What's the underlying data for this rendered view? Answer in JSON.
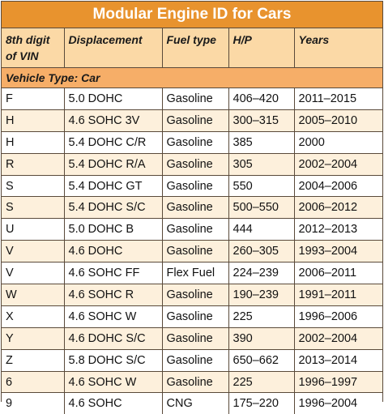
{
  "title": "Modular Engine ID for Cars",
  "headers": [
    "8th digit of VIN",
    "Displacement",
    "Fuel type",
    "H/P",
    "Years"
  ],
  "section": "Vehicle Type: Car",
  "rows": [
    [
      "F",
      "5.0 DOHC",
      "Gasoline",
      "406–420",
      "2011–2015"
    ],
    [
      "H",
      "4.6 SOHC 3V",
      "Gasoline",
      "300–315",
      "2005–2010"
    ],
    [
      "H",
      "5.4 DOHC C/R",
      "Gasoline",
      "385",
      "2000"
    ],
    [
      "R",
      "5.4 DOHC R/A",
      "Gasoline",
      "305",
      "2002–2004"
    ],
    [
      "S",
      "5.4 DOHC GT",
      "Gasoline",
      "550",
      "2004–2006"
    ],
    [
      "S",
      "5.4 DOHC S/C",
      "Gasoline",
      "500–550",
      "2006–2012"
    ],
    [
      "U",
      "5.0 DOHC B",
      "Gasoline",
      "444",
      "2012–2013"
    ],
    [
      "V",
      "4.6 DOHC",
      "Gasoline",
      "260–305",
      "1993–2004"
    ],
    [
      "V",
      "4.6 SOHC FF",
      "Flex Fuel",
      "224–239",
      "2006–2011"
    ],
    [
      "W",
      "4.6 SOHC R",
      "Gasoline",
      "190–239",
      "1991–2011"
    ],
    [
      "X",
      "4.6 SOHC W",
      "Gasoline",
      "225",
      "1996–2006"
    ],
    [
      "Y",
      "4.6 DOHC S/C",
      "Gasoline",
      "390",
      "2002–2004"
    ],
    [
      "Z",
      "5.8 DOHC S/C",
      "Gasoline",
      "650–662",
      "2013–2014"
    ],
    [
      "6",
      "4.6 SOHC W",
      "Gasoline",
      "225",
      "1996–1997"
    ],
    [
      "9",
      "4.6 SOHC",
      "CNG",
      "175–220",
      "1996–2004"
    ]
  ]
}
